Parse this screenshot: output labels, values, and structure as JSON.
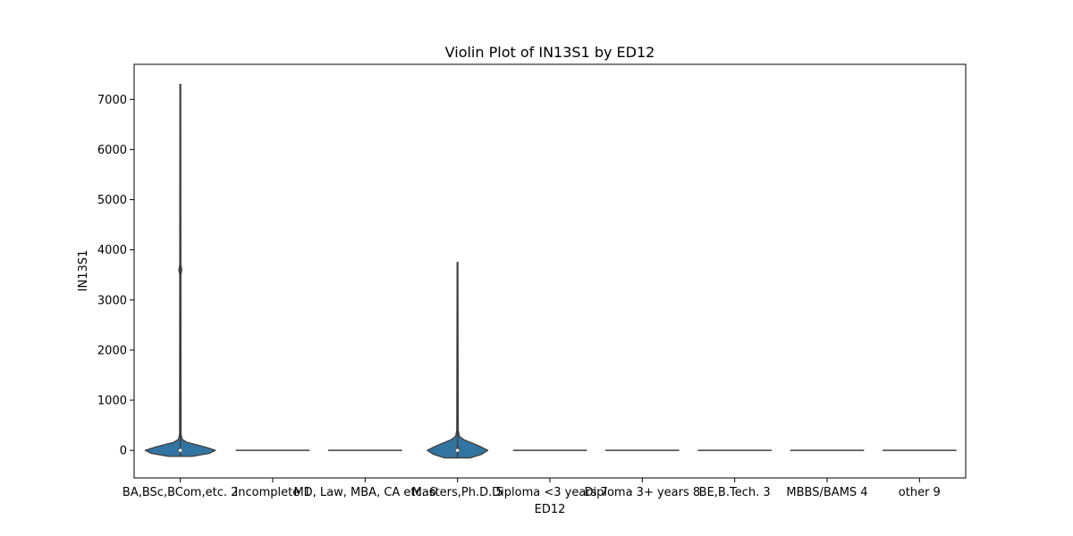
{
  "chart_data": {
    "type": "violin",
    "title": "Violin Plot of IN13S1 by ED12",
    "xlabel": "ED12",
    "ylabel": "IN13S1",
    "ylim": [
      -550,
      7700
    ],
    "yticks": [
      0,
      1000,
      2000,
      3000,
      4000,
      5000,
      6000,
      7000
    ],
    "grid": false,
    "color": "#3274a1",
    "categories": [
      "BA,BSc,BCom,etc. 2",
      "Incomplete 1",
      "MD, Law, MBA, CA etc. 6",
      "Masters,Ph.D. 5",
      "Diploma <3 years 7",
      "Diploma 3+ years 8",
      "BE,B.Tech. 3",
      "MBBS/BAMS 4",
      "other 9"
    ],
    "violins": [
      {
        "min": -120,
        "max": 7300,
        "median": 0,
        "q1": -30,
        "q3": 40,
        "profile": [
          [
            -120,
            0.32
          ],
          [
            -60,
            0.78
          ],
          [
            0,
            0.95
          ],
          [
            60,
            0.7
          ],
          [
            110,
            0.45
          ],
          [
            160,
            0.18
          ],
          [
            220,
            0.05
          ],
          [
            320,
            0.02
          ],
          [
            3500,
            0.015
          ],
          [
            3600,
            0.04
          ],
          [
            3700,
            0.015
          ],
          [
            7300,
            0.01
          ]
        ]
      },
      {
        "min": 0,
        "max": 0,
        "median": 0,
        "q1": 0,
        "q3": 0,
        "profile": []
      },
      {
        "min": 0,
        "max": 0,
        "median": 0,
        "q1": 0,
        "q3": 0,
        "profile": []
      },
      {
        "min": -150,
        "max": 3750,
        "median": 0,
        "q1": -40,
        "q3": 60,
        "profile": [
          [
            -150,
            0.35
          ],
          [
            -80,
            0.65
          ],
          [
            0,
            0.82
          ],
          [
            80,
            0.6
          ],
          [
            150,
            0.38
          ],
          [
            210,
            0.18
          ],
          [
            280,
            0.05
          ],
          [
            400,
            0.02
          ],
          [
            3750,
            0.01
          ]
        ]
      },
      {
        "min": 0,
        "max": 0,
        "median": 0,
        "q1": 0,
        "q3": 0,
        "profile": []
      },
      {
        "min": 0,
        "max": 0,
        "median": 0,
        "q1": 0,
        "q3": 0,
        "profile": []
      },
      {
        "min": 0,
        "max": 0,
        "median": 0,
        "q1": 0,
        "q3": 0,
        "profile": []
      },
      {
        "min": 0,
        "max": 0,
        "median": 0,
        "q1": 0,
        "q3": 0,
        "profile": []
      },
      {
        "min": 0,
        "max": 0,
        "median": 0,
        "q1": 0,
        "q3": 0,
        "profile": []
      }
    ]
  }
}
